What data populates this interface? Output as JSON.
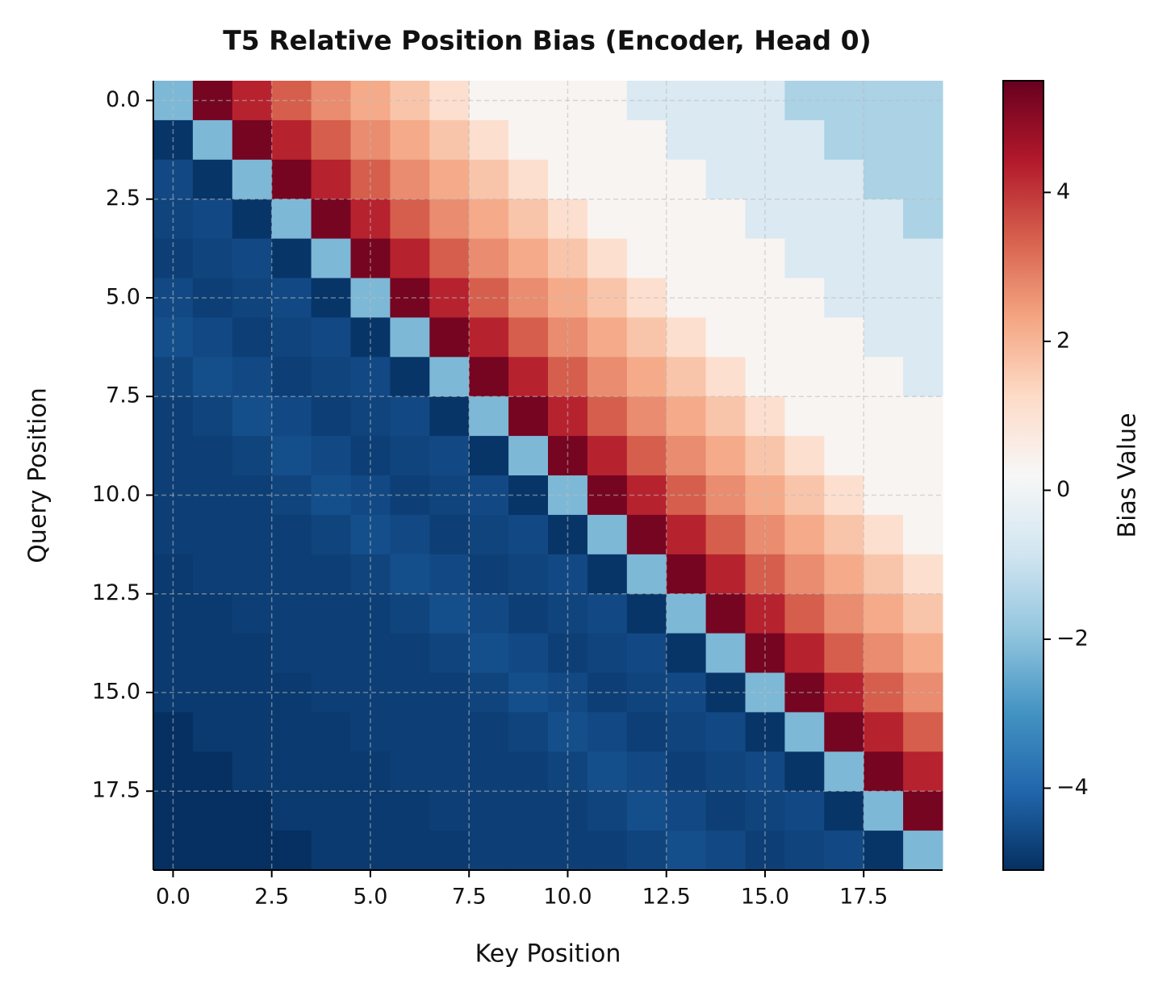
{
  "chart_data": {
    "type": "heatmap",
    "title": "T5 Relative Position Bias (Encoder, Head 0)",
    "x_label": "Key Position",
    "y_label": "Query Position",
    "colorbar_label": "Bias Value",
    "colormap": "RdBu_r",
    "clim": [
      -5.1,
      5.5
    ],
    "grid": true,
    "y_inverted": true,
    "xlim": [
      -0.5,
      19.5
    ],
    "ylim": [
      -0.5,
      19.5
    ],
    "xticks": [
      {
        "value": 0,
        "label": "0.0"
      },
      2.5,
      {
        "value": 5,
        "label": "5.0"
      },
      7.5,
      {
        "value": 10,
        "label": "10.0"
      },
      12.5,
      {
        "value": 15,
        "label": "15.0"
      },
      17.5
    ],
    "yticks": [
      {
        "value": 0,
        "label": "0.0"
      },
      2.5,
      {
        "value": 5,
        "label": "5.0"
      },
      7.5,
      {
        "value": 10,
        "label": "10.0"
      },
      12.5,
      {
        "value": 15,
        "label": "15.0"
      },
      17.5
    ],
    "colorbar_ticks": [
      {
        "value": -4,
        "label": "−4"
      },
      {
        "value": -2,
        "label": "−2"
      },
      0,
      2,
      4
    ],
    "z": [
      [
        -2.2,
        5.3,
        4.3,
        3.4,
        2.7,
        2.2,
        1.7,
        1.1,
        0.3,
        0.3,
        0.3,
        0.3,
        -0.6,
        -0.6,
        -0.6,
        -0.6,
        -1.5,
        -1.5,
        -1.5,
        -1.5
      ],
      [
        -5.0,
        -2.2,
        5.3,
        4.3,
        3.4,
        2.7,
        2.2,
        1.7,
        1.1,
        0.3,
        0.3,
        0.3,
        0.3,
        -0.6,
        -0.6,
        -0.6,
        -0.6,
        -1.5,
        -1.5,
        -1.5
      ],
      [
        -4.6,
        -5.0,
        -2.2,
        5.3,
        4.3,
        3.4,
        2.7,
        2.2,
        1.7,
        1.1,
        0.3,
        0.3,
        0.3,
        0.3,
        -0.6,
        -0.6,
        -0.6,
        -0.6,
        -1.5,
        -1.5
      ],
      [
        -4.7,
        -4.6,
        -5.0,
        -2.2,
        5.3,
        4.3,
        3.4,
        2.7,
        2.2,
        1.7,
        1.1,
        0.3,
        0.3,
        0.3,
        0.3,
        -0.6,
        -0.6,
        -0.6,
        -0.6,
        -1.5
      ],
      [
        -4.8,
        -4.7,
        -4.6,
        -5.0,
        -2.2,
        5.3,
        4.3,
        3.4,
        2.7,
        2.2,
        1.7,
        1.1,
        0.3,
        0.3,
        0.3,
        0.3,
        -0.6,
        -0.6,
        -0.6,
        -0.6
      ],
      [
        -4.6,
        -4.8,
        -4.7,
        -4.6,
        -5.0,
        -2.2,
        5.3,
        4.3,
        3.4,
        2.7,
        2.2,
        1.7,
        1.1,
        0.3,
        0.3,
        0.3,
        0.3,
        -0.6,
        -0.6,
        -0.6
      ],
      [
        -4.5,
        -4.6,
        -4.8,
        -4.7,
        -4.6,
        -5.0,
        -2.2,
        5.3,
        4.3,
        3.4,
        2.7,
        2.2,
        1.7,
        1.1,
        0.3,
        0.3,
        0.3,
        0.3,
        -0.6,
        -0.6
      ],
      [
        -4.7,
        -4.5,
        -4.6,
        -4.8,
        -4.7,
        -4.6,
        -5.0,
        -2.2,
        5.3,
        4.3,
        3.4,
        2.7,
        2.2,
        1.7,
        1.1,
        0.3,
        0.3,
        0.3,
        0.3,
        -0.6
      ],
      [
        -4.8,
        -4.7,
        -4.5,
        -4.6,
        -4.8,
        -4.7,
        -4.6,
        -5.0,
        -2.2,
        5.3,
        4.3,
        3.4,
        2.7,
        2.2,
        1.7,
        1.1,
        0.3,
        0.3,
        0.3,
        0.3
      ],
      [
        -4.8,
        -4.8,
        -4.7,
        -4.5,
        -4.6,
        -4.8,
        -4.7,
        -4.6,
        -5.0,
        -2.2,
        5.3,
        4.3,
        3.4,
        2.7,
        2.2,
        1.7,
        1.1,
        0.3,
        0.3,
        0.3
      ],
      [
        -4.8,
        -4.8,
        -4.8,
        -4.7,
        -4.5,
        -4.6,
        -4.8,
        -4.7,
        -4.6,
        -5.0,
        -2.2,
        5.3,
        4.3,
        3.4,
        2.7,
        2.2,
        1.7,
        1.1,
        0.3,
        0.3
      ],
      [
        -4.8,
        -4.8,
        -4.8,
        -4.8,
        -4.7,
        -4.5,
        -4.6,
        -4.8,
        -4.7,
        -4.6,
        -5.0,
        -2.2,
        5.3,
        4.3,
        3.4,
        2.7,
        2.2,
        1.7,
        1.1,
        0.3
      ],
      [
        -4.9,
        -4.8,
        -4.8,
        -4.8,
        -4.8,
        -4.7,
        -4.5,
        -4.6,
        -4.8,
        -4.7,
        -4.6,
        -5.0,
        -2.2,
        5.3,
        4.3,
        3.4,
        2.7,
        2.2,
        1.7,
        1.1
      ],
      [
        -4.9,
        -4.9,
        -4.8,
        -4.8,
        -4.8,
        -4.8,
        -4.7,
        -4.5,
        -4.6,
        -4.8,
        -4.7,
        -4.6,
        -5.0,
        -2.2,
        5.3,
        4.3,
        3.4,
        2.7,
        2.2,
        1.7
      ],
      [
        -4.9,
        -4.9,
        -4.9,
        -4.8,
        -4.8,
        -4.8,
        -4.8,
        -4.7,
        -4.5,
        -4.6,
        -4.8,
        -4.7,
        -4.6,
        -5.0,
        -2.2,
        5.3,
        4.3,
        3.4,
        2.7,
        2.2
      ],
      [
        -4.9,
        -4.9,
        -4.9,
        -4.9,
        -4.8,
        -4.8,
        -4.8,
        -4.8,
        -4.7,
        -4.5,
        -4.6,
        -4.8,
        -4.7,
        -4.6,
        -5.0,
        -2.2,
        5.3,
        4.3,
        3.4,
        2.7
      ],
      [
        -5.1,
        -4.9,
        -4.9,
        -4.9,
        -4.9,
        -4.8,
        -4.8,
        -4.8,
        -4.8,
        -4.7,
        -4.5,
        -4.6,
        -4.8,
        -4.7,
        -4.6,
        -5.0,
        -2.2,
        5.3,
        4.3,
        3.4
      ],
      [
        -5.1,
        -5.1,
        -4.9,
        -4.9,
        -4.9,
        -4.9,
        -4.8,
        -4.8,
        -4.8,
        -4.8,
        -4.7,
        -4.5,
        -4.6,
        -4.8,
        -4.7,
        -4.6,
        -5.0,
        -2.2,
        5.3,
        4.3
      ],
      [
        -5.1,
        -5.1,
        -5.1,
        -4.9,
        -4.9,
        -4.9,
        -4.9,
        -4.8,
        -4.8,
        -4.8,
        -4.8,
        -4.7,
        -4.5,
        -4.6,
        -4.8,
        -4.7,
        -4.6,
        -5.0,
        -2.2,
        5.3
      ],
      [
        -5.1,
        -5.1,
        -5.1,
        -5.1,
        -4.9,
        -4.9,
        -4.9,
        -4.9,
        -4.8,
        -4.8,
        -4.8,
        -4.8,
        -4.7,
        -4.5,
        -4.6,
        -4.8,
        -4.7,
        -4.6,
        -5.0,
        -2.2
      ]
    ]
  }
}
